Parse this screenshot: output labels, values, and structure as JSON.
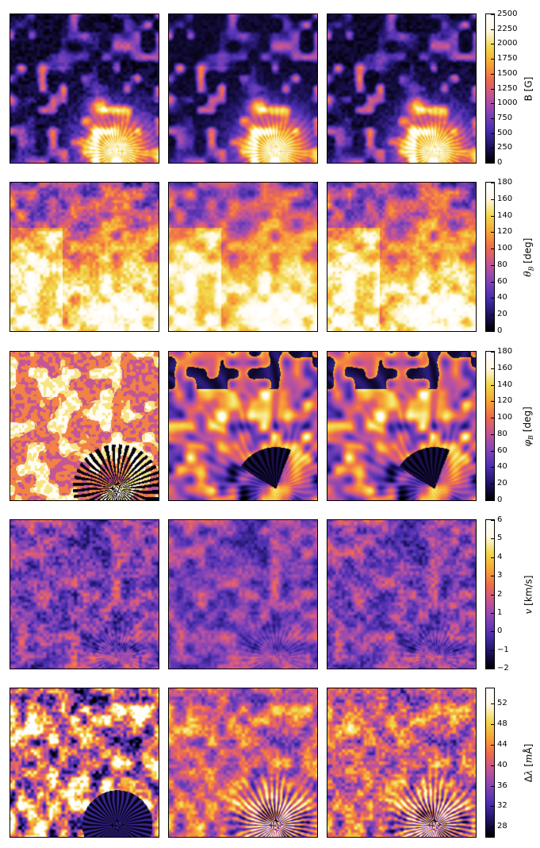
{
  "colormap": [
    "#000000",
    "#1f1460",
    "#4b2fb0",
    "#8245b8",
    "#c2549a",
    "#ee6a4f",
    "#f7a536",
    "#f2d84a",
    "#fff8e0",
    "#ffffff"
  ],
  "chart_data": [
    {
      "type": "heatmap",
      "row": 1,
      "colorbar_label": "B [G]",
      "colorbar_range": [
        0,
        2500
      ],
      "colorbar_ticks": [
        "0",
        "250",
        "500",
        "750",
        "1000",
        "1250",
        "1500",
        "1750",
        "2000",
        "2250",
        "2500"
      ]
    },
    {
      "type": "heatmap",
      "row": 2,
      "colorbar_label": "θ_B [deg]",
      "colorbar_range": [
        0,
        180
      ],
      "colorbar_ticks": [
        "0",
        "20",
        "40",
        "60",
        "80",
        "100",
        "120",
        "140",
        "160",
        "180"
      ]
    },
    {
      "type": "heatmap",
      "row": 3,
      "colorbar_label": "φ_B [deg]",
      "colorbar_range": [
        0,
        180
      ],
      "colorbar_ticks": [
        "0",
        "20",
        "40",
        "60",
        "80",
        "100",
        "120",
        "140",
        "160",
        "180"
      ]
    },
    {
      "type": "heatmap",
      "row": 4,
      "colorbar_label": "v [km/s]",
      "colorbar_range": [
        -2,
        6
      ],
      "colorbar_ticks": [
        "−2",
        "−1",
        "0",
        "1",
        "2",
        "3",
        "4",
        "5",
        "6"
      ]
    },
    {
      "type": "heatmap",
      "row": 5,
      "colorbar_label": "Δλ [mÅ]",
      "colorbar_range": [
        26,
        55
      ],
      "colorbar_ticks": [
        "28",
        "32",
        "36",
        "40",
        "44",
        "48",
        "52"
      ]
    }
  ]
}
